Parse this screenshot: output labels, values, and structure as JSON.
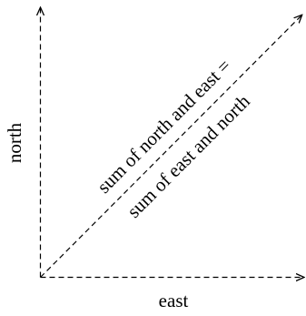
{
  "diagram": {
    "x_axis_label": "east",
    "y_axis_label": "north",
    "diagonal_label_line1": "sum of north and east =",
    "diagonal_label_line2": "sum of east and north",
    "colors": {
      "stroke": "#000000",
      "text": "#000000",
      "background": "#ffffff"
    },
    "line_style": "dashed"
  }
}
